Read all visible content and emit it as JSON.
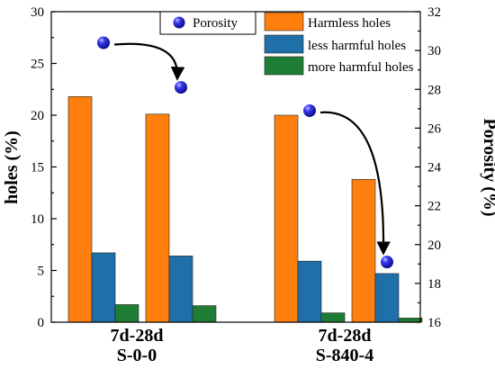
{
  "chart_data": {
    "type": "bar",
    "title": "",
    "ylabel": "holes (%)",
    "y2label": "Porosity (%)",
    "ylim": [
      0,
      30
    ],
    "y2lim": [
      16,
      32
    ],
    "yticks": [
      0,
      5,
      10,
      15,
      20,
      25,
      30
    ],
    "y2ticks": [
      16,
      18,
      20,
      22,
      24,
      26,
      28,
      30,
      32
    ],
    "groups": [
      {
        "label_line1": "7d-28d",
        "label_line2": "S-0-0",
        "bars": [
          {
            "age": "7d",
            "values": [
              21.8,
              6.7,
              1.7
            ]
          },
          {
            "age": "28d",
            "values": [
              20.1,
              6.4,
              1.6
            ]
          }
        ],
        "porosity": [
          30.4,
          28.1
        ]
      },
      {
        "label_line1": "7d-28d",
        "label_line2": "S-840-4",
        "bars": [
          {
            "age": "7d",
            "values": [
              20.0,
              5.9,
              0.9
            ]
          },
          {
            "age": "28d",
            "values": [
              13.8,
              4.7,
              0.4
            ]
          }
        ],
        "porosity": [
          26.9,
          19.1
        ]
      }
    ],
    "series": [
      {
        "name": "Harmless holes",
        "color": "#ff7f0e"
      },
      {
        "name": "less harmful holes",
        "color": "#1f6fa8"
      },
      {
        "name": "more harmful holes",
        "color": "#1e7d34"
      }
    ],
    "marker_series": {
      "name": "Porosity",
      "color": "#1515d8"
    },
    "legend_position": "top-right",
    "grid": false
  }
}
